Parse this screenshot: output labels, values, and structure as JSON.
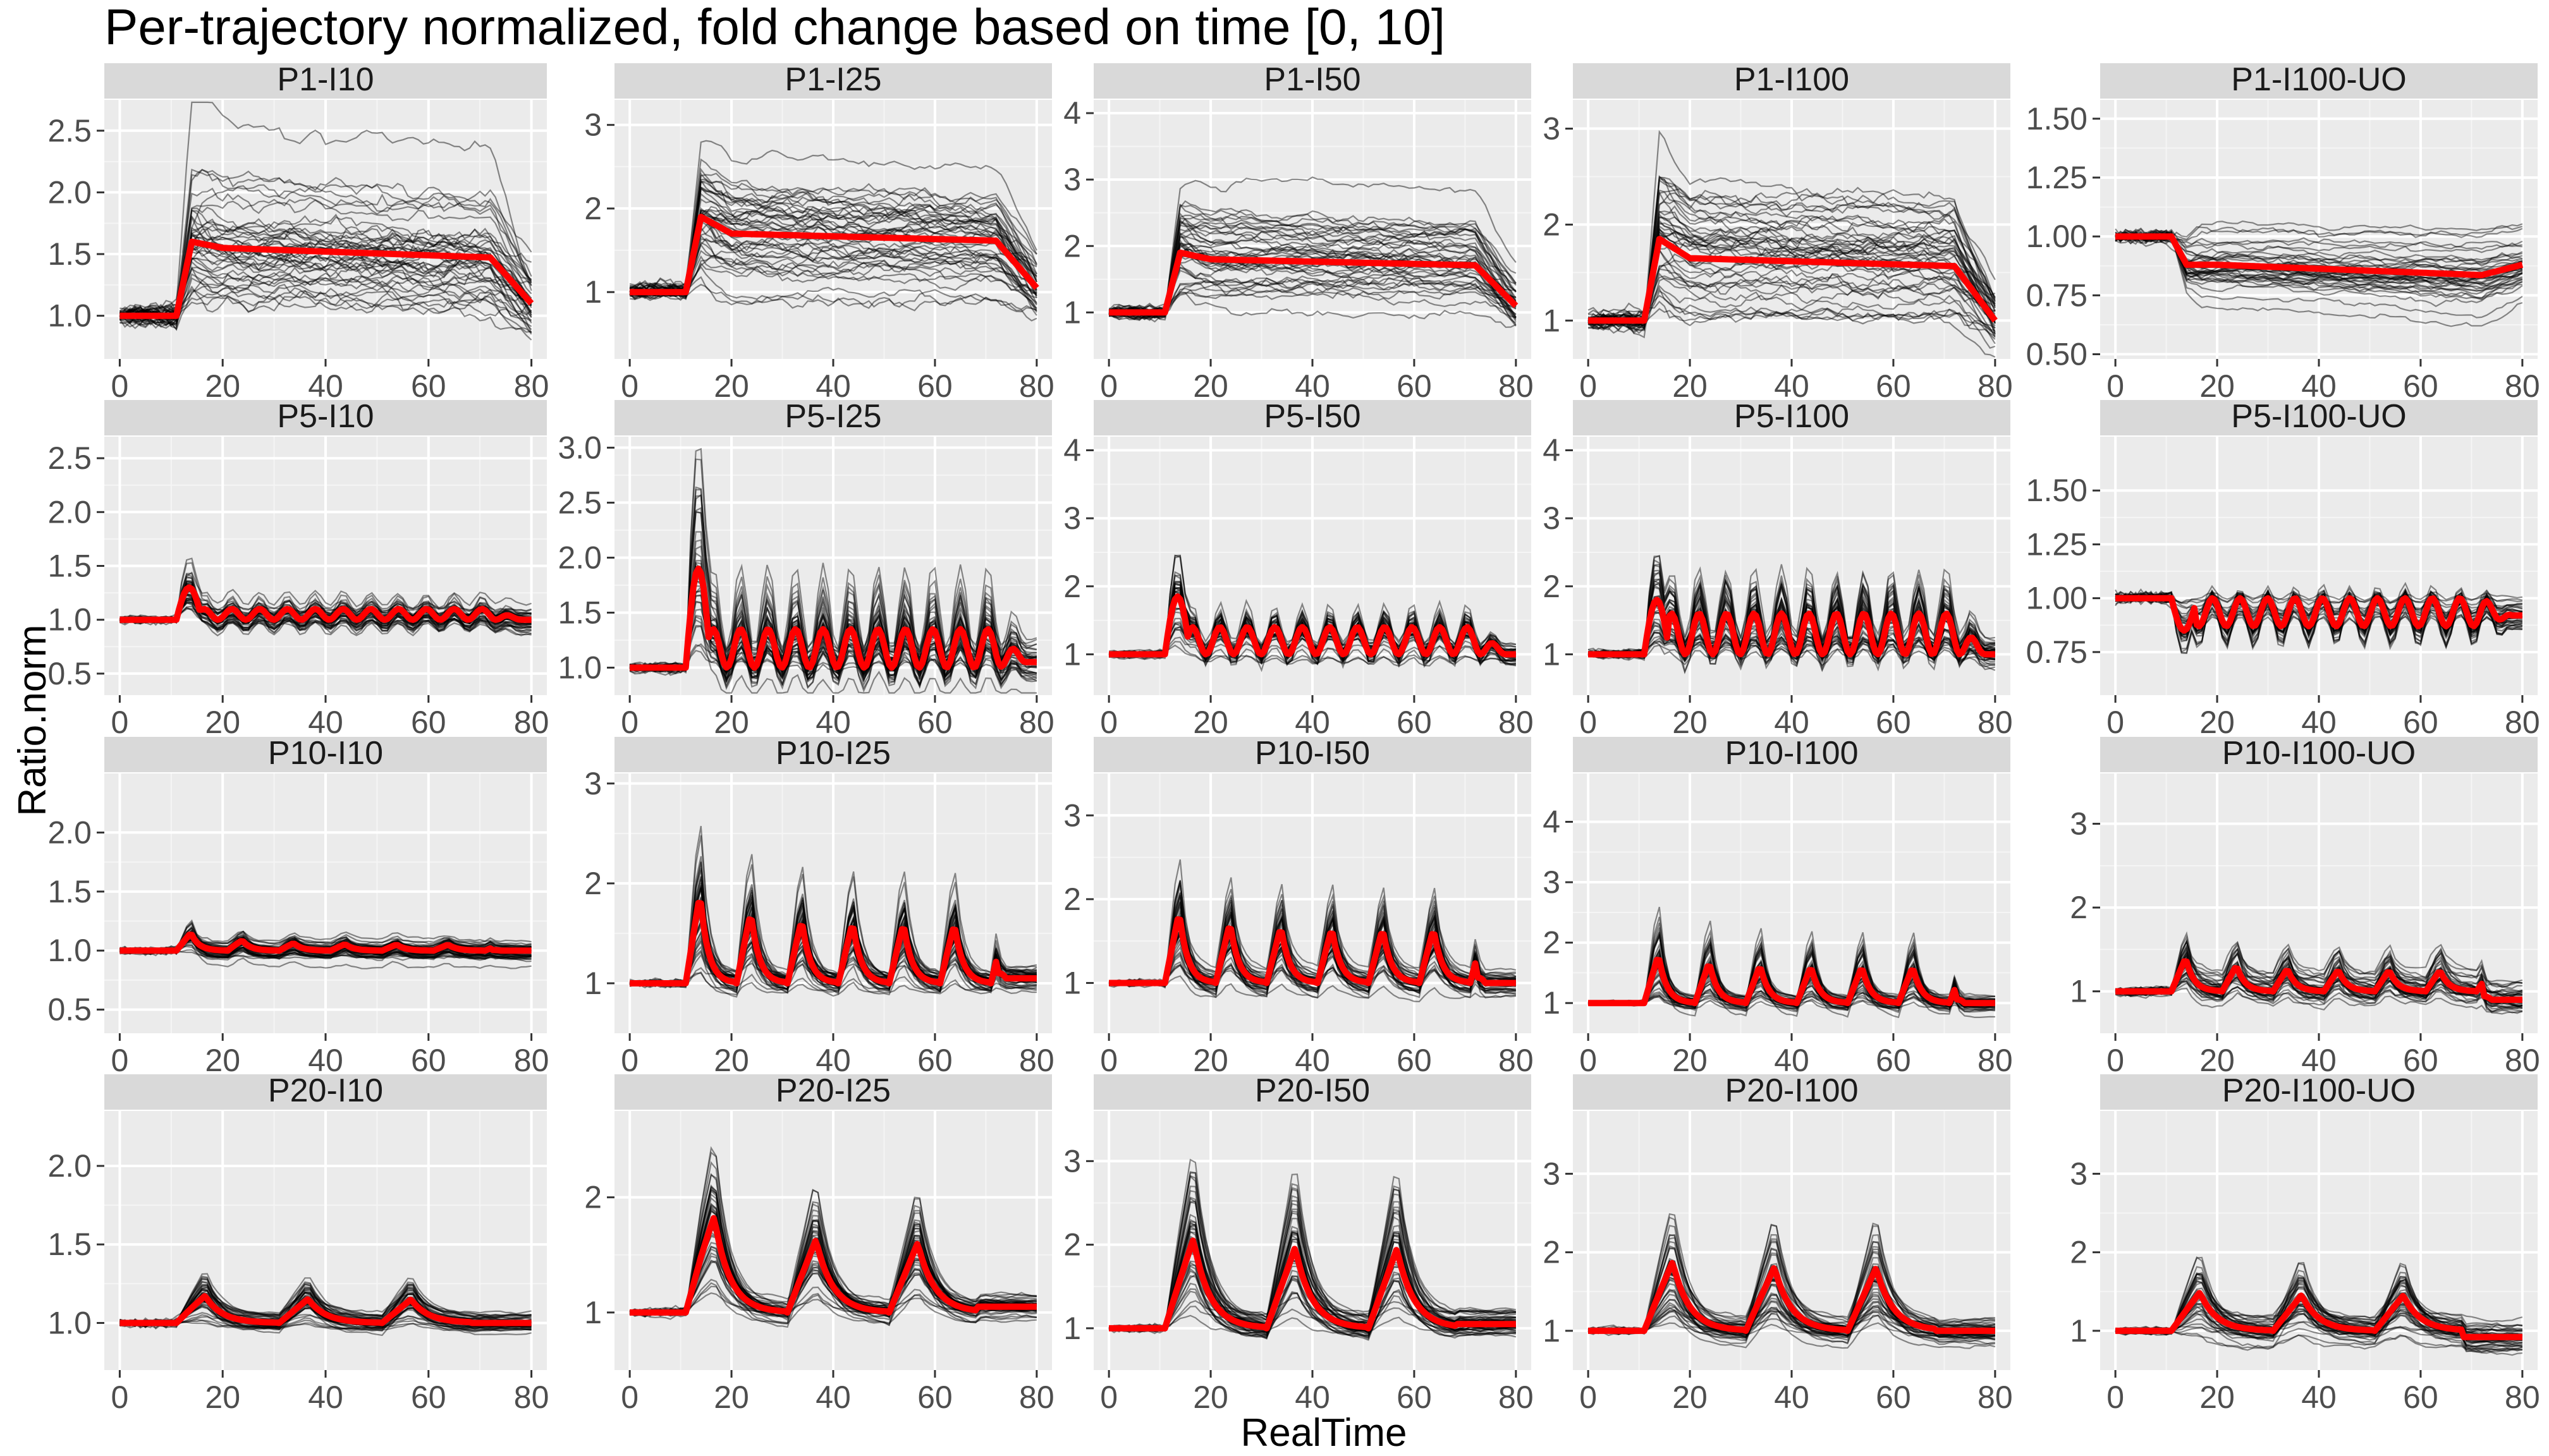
{
  "chart_data": {
    "type": "line",
    "title": "Per-trajectory normalized, fold change based on time [0, 10]",
    "xlabel": "RealTime",
    "ylabel": "Ratio.norm",
    "grid": true,
    "x_ticks": [
      0,
      20,
      40,
      60,
      80
    ],
    "xlim": [
      -3,
      83
    ],
    "series_styles": {
      "trajectories": "#000000",
      "mean": "#ff0000"
    },
    "panels": [
      {
        "label": "P1-I10",
        "ylim": [
          0.65,
          2.75
        ],
        "yticks": [
          1.0,
          1.5,
          2.0,
          2.5
        ],
        "ytick_labels": [
          "1.0",
          "1.5",
          "2.0",
          "2.5"
        ],
        "pulse": 1,
        "base": 1.0,
        "peak": 1.6,
        "plateau": 1.55,
        "endval": 1.1,
        "spread": 0.5,
        "ntraj": 45,
        "seed": 11
      },
      {
        "label": "P1-I25",
        "ylim": [
          0.2,
          3.3
        ],
        "yticks": [
          1,
          2,
          3
        ],
        "ytick_labels": [
          "1",
          "2",
          "3"
        ],
        "pulse": 1,
        "base": 1.0,
        "peak": 1.9,
        "plateau": 1.7,
        "endval": 1.05,
        "spread": 0.6,
        "ntraj": 45,
        "seed": 12
      },
      {
        "label": "P1-I50",
        "ylim": [
          0.3,
          4.2
        ],
        "yticks": [
          1,
          2,
          3,
          4
        ],
        "ytick_labels": [
          "1",
          "2",
          "3",
          "4"
        ],
        "pulse": 1,
        "base": 1.0,
        "peak": 1.9,
        "plateau": 1.8,
        "endval": 1.1,
        "spread": 0.6,
        "ntraj": 45,
        "seed": 13
      },
      {
        "label": "P1-I100",
        "ylim": [
          0.6,
          3.3
        ],
        "yticks": [
          1,
          2,
          3
        ],
        "ytick_labels": [
          "1",
          "2",
          "3"
        ],
        "pulse": 1,
        "base": 1.0,
        "peak": 1.85,
        "plateau": 1.65,
        "endval": 1.0,
        "spread": 0.55,
        "ntraj": 45,
        "seed": 14
      },
      {
        "label": "P1-I100-UO",
        "ylim": [
          0.48,
          1.58
        ],
        "yticks": [
          0.5,
          0.75,
          1.0,
          1.25,
          1.5
        ],
        "ytick_labels": [
          "0.50",
          "0.75",
          "1.00",
          "1.25",
          "1.50"
        ],
        "pulse": 1,
        "base": 1.0,
        "peak": 0.88,
        "plateau": 0.88,
        "endval": 0.88,
        "spread": 0.12,
        "ntraj": 40,
        "seed": 15
      },
      {
        "label": "P5-I10",
        "ylim": [
          0.3,
          2.7
        ],
        "yticks": [
          0.5,
          1.0,
          1.5,
          2.0,
          2.5
        ],
        "ytick_labels": [
          "0.5",
          "1.0",
          "1.5",
          "2.0",
          "2.5"
        ],
        "pulse": 5,
        "base": 1.0,
        "peak": 1.3,
        "plateau": 1.1,
        "endval": 1.0,
        "spread": 0.15,
        "ntraj": 45,
        "seed": 21
      },
      {
        "label": "P5-I25",
        "ylim": [
          0.75,
          3.1
        ],
        "yticks": [
          1.0,
          1.5,
          2.0,
          2.5,
          3.0
        ],
        "ytick_labels": [
          "1.0",
          "1.5",
          "2.0",
          "2.5",
          "3.0"
        ],
        "pulse": 5,
        "base": 1.0,
        "peak": 1.9,
        "plateau": 1.35,
        "endval": 1.05,
        "spread": 0.25,
        "ntraj": 45,
        "seed": 22
      },
      {
        "label": "P5-I50",
        "ylim": [
          0.4,
          4.2
        ],
        "yticks": [
          1,
          2,
          3,
          4
        ],
        "ytick_labels": [
          "1",
          "2",
          "3",
          "4"
        ],
        "pulse": 5,
        "base": 1.0,
        "peak": 1.85,
        "plateau": 1.4,
        "endval": 1.0,
        "spread": 0.3,
        "ntraj": 45,
        "seed": 23
      },
      {
        "label": "P5-I100",
        "ylim": [
          0.4,
          4.2
        ],
        "yticks": [
          1,
          2,
          3,
          4
        ],
        "ytick_labels": [
          "1",
          "2",
          "3",
          "4"
        ],
        "pulse": 5,
        "base": 1.0,
        "peak": 1.8,
        "plateau": 1.6,
        "endval": 1.0,
        "spread": 0.4,
        "ntraj": 45,
        "seed": 24
      },
      {
        "label": "P5-I100-UO",
        "ylim": [
          0.55,
          1.75
        ],
        "yticks": [
          0.75,
          1.0,
          1.25,
          1.5
        ],
        "ytick_labels": [
          "0.75",
          "1.00",
          "1.25",
          "1.50"
        ],
        "pulse": 5,
        "base": 1.0,
        "peak": 0.85,
        "plateau": 0.87,
        "endval": 0.92,
        "spread": 0.1,
        "ntraj": 40,
        "seed": 25
      },
      {
        "label": "P10-I10",
        "ylim": [
          0.3,
          2.5
        ],
        "yticks": [
          0.5,
          1.0,
          1.5,
          2.0
        ],
        "ytick_labels": [
          "0.5",
          "1.0",
          "1.5",
          "2.0"
        ],
        "pulse": 10,
        "base": 1.0,
        "peak": 1.15,
        "plateau": 1.05,
        "endval": 1.0,
        "spread": 0.12,
        "ntraj": 45,
        "seed": 31
      },
      {
        "label": "P10-I25",
        "ylim": [
          0.5,
          3.1
        ],
        "yticks": [
          1,
          2,
          3
        ],
        "ytick_labels": [
          "1",
          "2",
          "3"
        ],
        "pulse": 10,
        "base": 1.0,
        "peak": 1.9,
        "plateau": 1.6,
        "endval": 1.05,
        "spread": 0.2,
        "ntraj": 45,
        "seed": 32
      },
      {
        "label": "P10-I50",
        "ylim": [
          0.4,
          3.5
        ],
        "yticks": [
          1,
          2,
          3
        ],
        "ytick_labels": [
          "1",
          "2",
          "3"
        ],
        "pulse": 10,
        "base": 1.0,
        "peak": 1.85,
        "plateau": 1.65,
        "endval": 1.0,
        "spread": 0.2,
        "ntraj": 45,
        "seed": 33
      },
      {
        "label": "P10-I100",
        "ylim": [
          0.5,
          4.8
        ],
        "yticks": [
          1,
          2,
          3,
          4
        ],
        "ytick_labels": [
          "1",
          "2",
          "3",
          "4"
        ],
        "pulse": 10,
        "base": 1.0,
        "peak": 1.8,
        "plateau": 1.6,
        "endval": 1.0,
        "spread": 0.2,
        "ntraj": 45,
        "seed": 34
      },
      {
        "label": "P10-I100-UO",
        "ylim": [
          0.5,
          3.6
        ],
        "yticks": [
          1,
          2,
          3
        ],
        "ytick_labels": [
          "1",
          "2",
          "3"
        ],
        "pulse": 10,
        "base": 1.0,
        "peak": 1.4,
        "plateau": 1.25,
        "endval": 0.9,
        "spread": 0.3,
        "ntraj": 40,
        "seed": 35
      },
      {
        "label": "P20-I10",
        "ylim": [
          0.7,
          2.35
        ],
        "yticks": [
          1.0,
          1.5,
          2.0
        ],
        "ytick_labels": [
          "1.0",
          "1.5",
          "2.0"
        ],
        "pulse": 20,
        "base": 1.0,
        "peak": 1.18,
        "plateau": 1.15,
        "endval": 1.0,
        "spread": 0.08,
        "ntraj": 45,
        "seed": 41
      },
      {
        "label": "P20-I25",
        "ylim": [
          0.5,
          2.75
        ],
        "yticks": [
          1,
          2
        ],
        "ytick_labels": [
          "1",
          "2"
        ],
        "pulse": 20,
        "base": 1.0,
        "peak": 1.9,
        "plateau": 1.6,
        "endval": 1.05,
        "spread": 0.15,
        "ntraj": 45,
        "seed": 42
      },
      {
        "label": "P20-I50",
        "ylim": [
          0.5,
          3.6
        ],
        "yticks": [
          1,
          2,
          3
        ],
        "ytick_labels": [
          "1",
          "2",
          "3"
        ],
        "pulse": 20,
        "base": 1.0,
        "peak": 2.1,
        "plateau": 1.95,
        "endval": 1.05,
        "spread": 0.2,
        "ntraj": 45,
        "seed": 43
      },
      {
        "label": "P20-I100",
        "ylim": [
          0.5,
          3.8
        ],
        "yticks": [
          1,
          2,
          3
        ],
        "ytick_labels": [
          "1",
          "2",
          "3"
        ],
        "pulse": 20,
        "base": 1.0,
        "peak": 1.9,
        "plateau": 1.8,
        "endval": 1.0,
        "spread": 0.2,
        "ntraj": 45,
        "seed": 44
      },
      {
        "label": "P20-I100-UO",
        "ylim": [
          0.5,
          3.8
        ],
        "yticks": [
          1,
          2,
          3
        ],
        "ytick_labels": [
          "1",
          "2",
          "3"
        ],
        "pulse": 20,
        "base": 1.0,
        "peak": 1.5,
        "plateau": 1.45,
        "endval": 0.92,
        "spread": 0.25,
        "ntraj": 40,
        "seed": 45
      }
    ]
  }
}
